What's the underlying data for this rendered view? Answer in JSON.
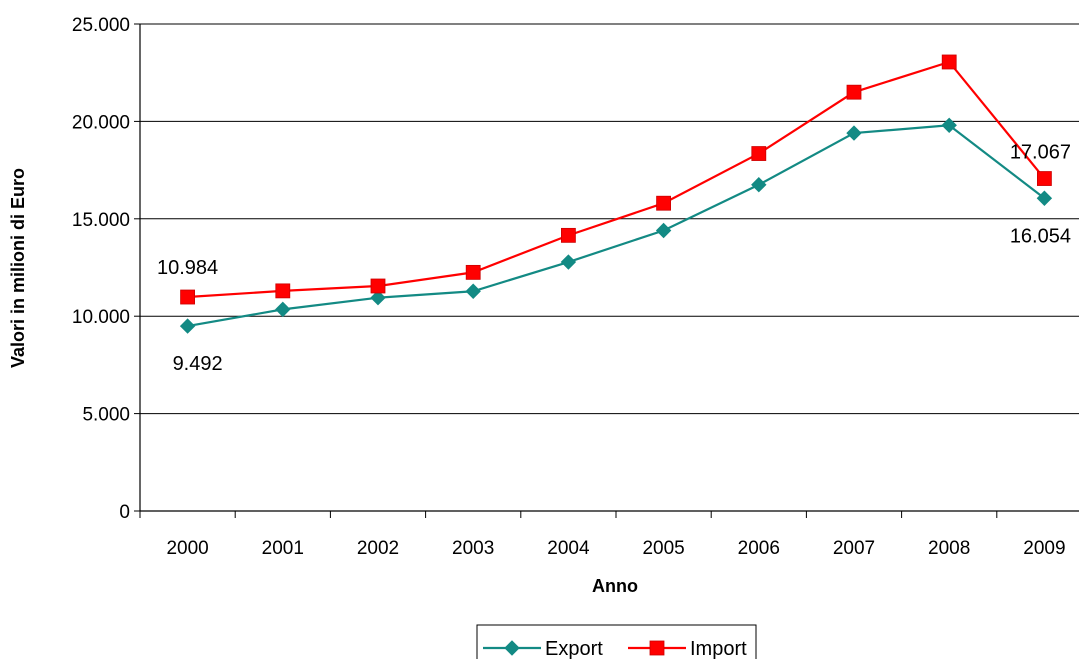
{
  "chart_data": {
    "type": "line",
    "title": "",
    "xlabel": "Anno",
    "ylabel": "Valori in milioni di Euro",
    "categories": [
      "2000",
      "2001",
      "2002",
      "2003",
      "2004",
      "2005",
      "2006",
      "2007",
      "2008",
      "2009"
    ],
    "ylim": [
      0,
      25000
    ],
    "yticks": [
      0,
      5000,
      10000,
      15000,
      20000,
      25000
    ],
    "ytick_labels": [
      "0",
      "5.000",
      "10.000",
      "15.000",
      "20.000",
      "25.000"
    ],
    "grid": true,
    "legend_position": "bottom",
    "series": [
      {
        "name": "Export",
        "color": "#138a84",
        "marker": "diamond",
        "values": [
          9492,
          10350,
          10950,
          11280,
          12780,
          14400,
          16750,
          19400,
          19800,
          16054
        ]
      },
      {
        "name": "Import",
        "color": "#ff0000",
        "marker": "square",
        "values": [
          10984,
          11300,
          11550,
          12250,
          14150,
          15800,
          18350,
          21500,
          23050,
          17067
        ]
      }
    ],
    "annotations": [
      {
        "series": "Import",
        "category": "2000",
        "text": "10.984"
      },
      {
        "series": "Export",
        "category": "2000",
        "text": "9.492"
      },
      {
        "series": "Import",
        "category": "2009",
        "text": "17.067"
      },
      {
        "series": "Export",
        "category": "2009",
        "text": "16.054"
      }
    ]
  }
}
